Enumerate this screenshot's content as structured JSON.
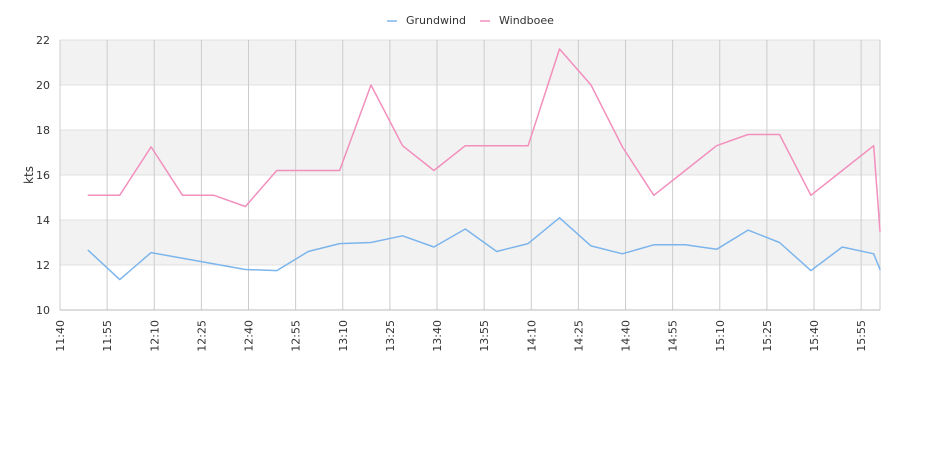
{
  "chart_data": {
    "type": "line",
    "title": "",
    "xlabel": "",
    "ylabel": "kts",
    "ylim": [
      10,
      22
    ],
    "yticks": [
      10,
      12,
      14,
      16,
      18,
      20,
      22
    ],
    "xlim": [
      "11:40",
      "16:01"
    ],
    "xtick_labels": [
      "11:40",
      "11:55",
      "12:10",
      "12:25",
      "12:40",
      "12:55",
      "13:10",
      "13:25",
      "13:40",
      "13:55",
      "14:10",
      "14:25",
      "14:40",
      "14:55",
      "15:10",
      "15:25",
      "15:40",
      "15:55"
    ],
    "grid": true,
    "legend_position": "top-center",
    "x": [
      "11:49",
      "11:59",
      "12:09",
      "12:19",
      "12:29",
      "12:39",
      "12:49",
      "12:59",
      "13:09",
      "13:19",
      "13:29",
      "13:39",
      "13:49",
      "13:59",
      "14:09",
      "14:19",
      "14:29",
      "14:39",
      "14:49",
      "14:59",
      "15:09",
      "15:19",
      "15:29",
      "15:39",
      "15:49",
      "15:59",
      "16:01"
    ],
    "series": [
      {
        "name": "Grundwind",
        "color": "#7cb5ec",
        "values": [
          12.65,
          11.35,
          12.55,
          12.3,
          12.05,
          11.8,
          11.75,
          12.6,
          12.95,
          13.0,
          13.3,
          12.8,
          13.6,
          12.6,
          12.95,
          14.1,
          12.85,
          12.5,
          12.9,
          12.9,
          12.7,
          13.55,
          13.0,
          11.75,
          12.8,
          12.5,
          11.8
        ]
      },
      {
        "name": "Windboee",
        "color": "#f28fbd",
        "values": [
          15.1,
          15.1,
          17.25,
          15.1,
          15.1,
          14.6,
          16.2,
          16.2,
          16.2,
          20.0,
          17.3,
          16.2,
          17.3,
          17.3,
          17.3,
          21.6,
          20.0,
          17.25,
          15.1,
          16.2,
          17.3,
          17.8,
          17.8,
          15.1,
          16.2,
          17.3,
          13.5
        ]
      }
    ]
  }
}
